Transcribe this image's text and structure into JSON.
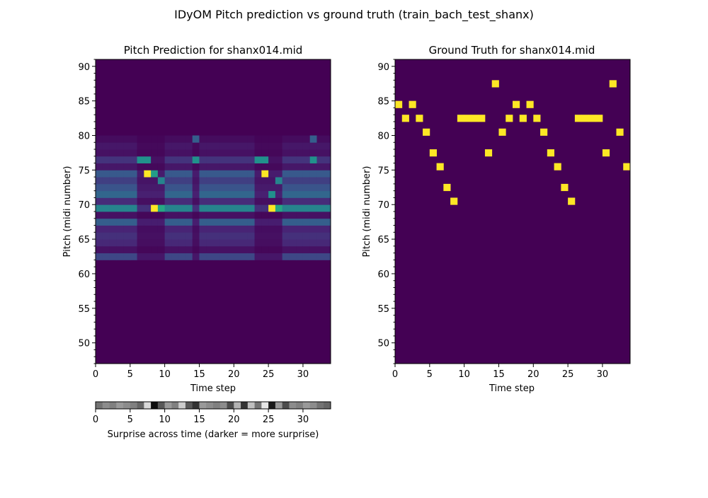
{
  "figure": {
    "suptitle": "IDyOM Pitch prediction vs ground truth (train_bach_test_shanx)"
  },
  "colors": {
    "viridis_dark": "#440154",
    "viridis_yellow": "#fde725",
    "surprise_dark": "#000000",
    "surprise_light": "#ffffff"
  },
  "chart_data": [
    {
      "type": "heatmap",
      "title": "Pitch Prediction for shanx014.mid",
      "xlabel": "Time step",
      "ylabel": "Pitch (midi number)",
      "xlim": [
        0,
        34
      ],
      "ylim": [
        47,
        91
      ],
      "xticks": [
        0,
        5,
        10,
        15,
        20,
        25,
        30
      ],
      "yticks": [
        50,
        55,
        60,
        65,
        70,
        75,
        80,
        85,
        90
      ],
      "colormap": "viridis",
      "time_steps": 34,
      "base_rows": [
        {
          "pitch": 62,
          "value": 0.22
        },
        {
          "pitch": 63,
          "value": 0.06
        },
        {
          "pitch": 64,
          "value": 0.14
        },
        {
          "pitch": 65,
          "value": 0.16
        },
        {
          "pitch": 66,
          "value": 0.13
        },
        {
          "pitch": 67,
          "value": 0.3
        },
        {
          "pitch": 68,
          "value": 0.06
        },
        {
          "pitch": 69,
          "value": 0.45
        },
        {
          "pitch": 70,
          "value": 0.15
        },
        {
          "pitch": 71,
          "value": 0.33
        },
        {
          "pitch": 72,
          "value": 0.26
        },
        {
          "pitch": 73,
          "value": 0.2
        },
        {
          "pitch": 74,
          "value": 0.28
        },
        {
          "pitch": 75,
          "value": 0.08
        },
        {
          "pitch": 76,
          "value": 0.17
        },
        {
          "pitch": 77,
          "value": 0.06
        },
        {
          "pitch": 78,
          "value": 0.08
        },
        {
          "pitch": 79,
          "value": 0.04
        }
      ],
      "gap_columns": [
        6,
        7,
        8,
        9,
        14,
        23,
        24,
        25,
        26
      ],
      "highlights": [
        {
          "time": 6,
          "pitch": 76,
          "value": 0.5
        },
        {
          "time": 7,
          "pitch": 76,
          "value": 0.5
        },
        {
          "time": 7,
          "pitch": 74,
          "value": 1.0
        },
        {
          "time": 8,
          "pitch": 69,
          "value": 1.0
        },
        {
          "time": 8,
          "pitch": 74,
          "value": 0.55
        },
        {
          "time": 9,
          "pitch": 69,
          "value": 0.6
        },
        {
          "time": 9,
          "pitch": 73,
          "value": 0.45
        },
        {
          "time": 14,
          "pitch": 76,
          "value": 0.5
        },
        {
          "time": 14,
          "pitch": 79,
          "value": 0.3
        },
        {
          "time": 23,
          "pitch": 76,
          "value": 0.5
        },
        {
          "time": 24,
          "pitch": 76,
          "value": 0.5
        },
        {
          "time": 24,
          "pitch": 74,
          "value": 1.0
        },
        {
          "time": 25,
          "pitch": 69,
          "value": 1.0
        },
        {
          "time": 25,
          "pitch": 71,
          "value": 0.5
        },
        {
          "time": 26,
          "pitch": 69,
          "value": 0.6
        },
        {
          "time": 26,
          "pitch": 73,
          "value": 0.45
        },
        {
          "time": 31,
          "pitch": 76,
          "value": 0.5
        },
        {
          "time": 31,
          "pitch": 79,
          "value": 0.3
        }
      ]
    },
    {
      "type": "heatmap",
      "title": "Ground Truth for shanx014.mid",
      "xlabel": "Time step",
      "ylabel": "Pitch (midi number)",
      "xlim": [
        0,
        34
      ],
      "ylim": [
        47,
        91
      ],
      "xticks": [
        0,
        5,
        10,
        15,
        20,
        25,
        30
      ],
      "yticks": [
        50,
        55,
        60,
        65,
        70,
        75,
        80,
        85,
        90
      ],
      "colormap": "viridis",
      "notes": [
        {
          "time": 0,
          "pitch": 84
        },
        {
          "time": 1,
          "pitch": 82
        },
        {
          "time": 2,
          "pitch": 84
        },
        {
          "time": 3,
          "pitch": 82
        },
        {
          "time": 4,
          "pitch": 80
        },
        {
          "time": 5,
          "pitch": 77
        },
        {
          "time": 6,
          "pitch": 75
        },
        {
          "time": 7,
          "pitch": 72
        },
        {
          "time": 8,
          "pitch": 70
        },
        {
          "time": 9,
          "pitch": 82
        },
        {
          "time": 10,
          "pitch": 82
        },
        {
          "time": 11,
          "pitch": 82
        },
        {
          "time": 12,
          "pitch": 82
        },
        {
          "time": 13,
          "pitch": 77
        },
        {
          "time": 14,
          "pitch": 87
        },
        {
          "time": 15,
          "pitch": 80
        },
        {
          "time": 16,
          "pitch": 82
        },
        {
          "time": 17,
          "pitch": 84
        },
        {
          "time": 18,
          "pitch": 82
        },
        {
          "time": 19,
          "pitch": 84
        },
        {
          "time": 20,
          "pitch": 82
        },
        {
          "time": 21,
          "pitch": 80
        },
        {
          "time": 22,
          "pitch": 77
        },
        {
          "time": 23,
          "pitch": 75
        },
        {
          "time": 24,
          "pitch": 72
        },
        {
          "time": 25,
          "pitch": 70
        },
        {
          "time": 26,
          "pitch": 82
        },
        {
          "time": 27,
          "pitch": 82
        },
        {
          "time": 28,
          "pitch": 82
        },
        {
          "time": 29,
          "pitch": 82
        },
        {
          "time": 30,
          "pitch": 77
        },
        {
          "time": 31,
          "pitch": 87
        },
        {
          "time": 32,
          "pitch": 80
        },
        {
          "time": 33,
          "pitch": 75
        }
      ]
    },
    {
      "type": "heatmap",
      "xlabel": "Surprise across time (darker = more surprise)",
      "xlim": [
        0,
        34
      ],
      "xticks": [
        0,
        5,
        10,
        15,
        20,
        25,
        30
      ],
      "colormap": "gray",
      "surprise": [
        0.45,
        0.55,
        0.5,
        0.6,
        0.55,
        0.5,
        0.4,
        0.85,
        0.05,
        0.35,
        0.6,
        0.5,
        0.8,
        0.35,
        0.2,
        0.6,
        0.55,
        0.5,
        0.55,
        0.3,
        0.7,
        0.2,
        0.75,
        0.45,
        0.9,
        0.1,
        0.6,
        0.3,
        0.55,
        0.5,
        0.6,
        0.55,
        0.45,
        0.4
      ]
    }
  ]
}
